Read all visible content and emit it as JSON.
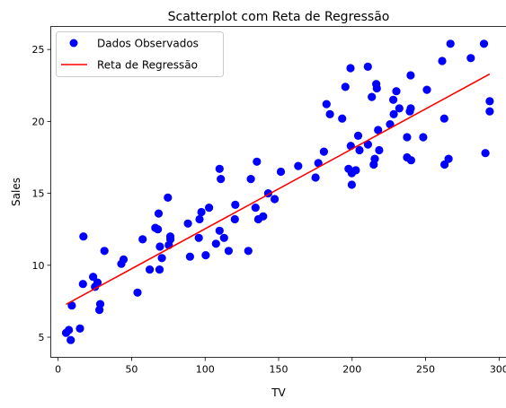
{
  "chart_data": {
    "type": "scatter",
    "title": "Scatterplot com Reta de Regressão",
    "xlabel": "TV",
    "ylabel": "Sales",
    "xlim": [
      -5,
      305
    ],
    "ylim": [
      3.6,
      26.6
    ],
    "x_ticks": [
      0,
      50,
      100,
      150,
      200,
      250,
      300
    ],
    "y_ticks": [
      5,
      10,
      15,
      20,
      25
    ],
    "grid": false,
    "legend_position": "upper-left",
    "legend": [
      "Dados Observados",
      "Reta de Regressão"
    ],
    "series": [
      {
        "name": "Dados Observados",
        "kind": "scatter",
        "color": "#0000ff",
        "points": [
          [
            5.4,
            5.3
          ],
          [
            7.3,
            5.5
          ],
          [
            8.6,
            4.8
          ],
          [
            9.3,
            7.2
          ],
          [
            14.9,
            5.6
          ],
          [
            17.2,
            12.0
          ],
          [
            16.9,
            8.7
          ],
          [
            23.8,
            9.2
          ],
          [
            25.1,
            8.5
          ],
          [
            26.8,
            8.8
          ],
          [
            28.1,
            6.9
          ],
          [
            28.6,
            7.3
          ],
          [
            31.5,
            11.0
          ],
          [
            43.0,
            10.1
          ],
          [
            44.5,
            10.4
          ],
          [
            54.0,
            8.1
          ],
          [
            57.5,
            11.8
          ],
          [
            62.3,
            9.7
          ],
          [
            66.1,
            12.6
          ],
          [
            67.8,
            12.5
          ],
          [
            68.4,
            13.6
          ],
          [
            69.0,
            9.7
          ],
          [
            69.2,
            11.3
          ],
          [
            70.6,
            10.5
          ],
          [
            74.7,
            14.7
          ],
          [
            75.3,
            11.4
          ],
          [
            76.3,
            12.0
          ],
          [
            76.4,
            11.8
          ],
          [
            89.7,
            10.6
          ],
          [
            88.3,
            12.9
          ],
          [
            95.7,
            11.9
          ],
          [
            96.2,
            13.2
          ],
          [
            97.5,
            13.7
          ],
          [
            100.4,
            10.7
          ],
          [
            102.7,
            14.0
          ],
          [
            107.4,
            11.5
          ],
          [
            109.8,
            16.7
          ],
          [
            110.7,
            16.0
          ],
          [
            109.8,
            12.4
          ],
          [
            112.9,
            11.9
          ],
          [
            116.0,
            11.0
          ],
          [
            120.5,
            14.2
          ],
          [
            120.2,
            13.2
          ],
          [
            129.4,
            11.0
          ],
          [
            131.1,
            16.0
          ],
          [
            134.3,
            14.0
          ],
          [
            135.2,
            17.2
          ],
          [
            136.2,
            13.2
          ],
          [
            139.5,
            13.4
          ],
          [
            142.9,
            15.0
          ],
          [
            147.3,
            14.6
          ],
          [
            151.5,
            16.5
          ],
          [
            163.3,
            16.9
          ],
          [
            175.1,
            16.1
          ],
          [
            177.0,
            17.1
          ],
          [
            180.8,
            17.9
          ],
          [
            182.6,
            21.2
          ],
          [
            184.9,
            20.5
          ],
          [
            193.2,
            20.2
          ],
          [
            195.4,
            22.4
          ],
          [
            197.6,
            16.7
          ],
          [
            198.9,
            23.7
          ],
          [
            199.1,
            18.3
          ],
          [
            199.8,
            16.4
          ],
          [
            199.8,
            15.6
          ],
          [
            202.5,
            16.6
          ],
          [
            204.1,
            19.0
          ],
          [
            205.0,
            18.0
          ],
          [
            210.7,
            23.8
          ],
          [
            210.8,
            18.4
          ],
          [
            213.4,
            21.7
          ],
          [
            214.7,
            17.0
          ],
          [
            215.4,
            17.4
          ],
          [
            216.4,
            22.6
          ],
          [
            216.8,
            22.3
          ],
          [
            217.7,
            19.4
          ],
          [
            218.4,
            18.0
          ],
          [
            225.8,
            19.8
          ],
          [
            228.0,
            21.5
          ],
          [
            228.3,
            20.5
          ],
          [
            230.1,
            22.1
          ],
          [
            232.1,
            20.9
          ],
          [
            237.4,
            18.9
          ],
          [
            237.4,
            17.5
          ],
          [
            239.3,
            20.7
          ],
          [
            239.8,
            23.2
          ],
          [
            239.9,
            20.9
          ],
          [
            240.1,
            17.3
          ],
          [
            248.4,
            18.9
          ],
          [
            250.9,
            22.2
          ],
          [
            261.3,
            24.2
          ],
          [
            262.7,
            20.2
          ],
          [
            262.9,
            17.0
          ],
          [
            265.6,
            17.4
          ],
          [
            266.9,
            25.4
          ],
          [
            280.7,
            24.4
          ],
          [
            289.7,
            25.4
          ],
          [
            290.7,
            17.8
          ],
          [
            293.6,
            21.4
          ],
          [
            293.6,
            20.7
          ]
        ]
      },
      {
        "name": "Reta de Regressão",
        "kind": "line",
        "color": "#ff0000",
        "points": [
          [
            5.4,
            7.28
          ],
          [
            293.6,
            23.29
          ]
        ]
      }
    ]
  }
}
